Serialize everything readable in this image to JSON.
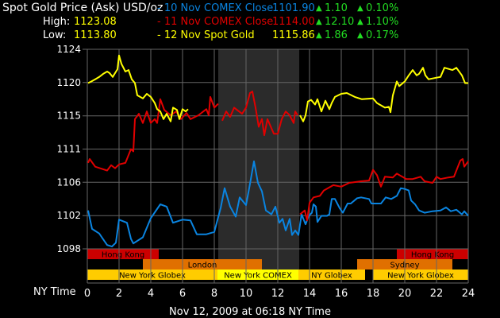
{
  "header": {
    "title": "Spot Gold Price (Ask) USD/oz",
    "high_label": "High:",
    "high_value": "1123.08",
    "low_label": "Low:",
    "low_value": "1113.80"
  },
  "legend": [
    {
      "label": "- 10 Nov COMEX Close",
      "price": "1101.90",
      "change": "1.10",
      "pct": "0.10%",
      "color": "#0a84e0"
    },
    {
      "label": "- 11 Nov COMEX Close",
      "price": "1114.00",
      "change": "12.10",
      "pct": "1.10%",
      "color": "#e00000"
    },
    {
      "label": "- 12 Nov Spot Gold",
      "price": "1115.86",
      "change": "1.86",
      "pct": "0.17%",
      "color": "#ffff00"
    }
  ],
  "colors": {
    "up": "#22dd22",
    "grid": "#666666",
    "shade": "#2b2b2b",
    "text": "#ffffff"
  },
  "icons": {
    "change_indicator": "triangle-up-icon"
  },
  "footer": {
    "timestamp": "Nov 12, 2009 at 06:18 NY Time"
  },
  "chart_data": {
    "type": "line",
    "xlabel": "NY Time",
    "xlim": [
      0,
      24
    ],
    "ylim": [
      1098,
      1124
    ],
    "x_ticks": [
      "0",
      "2",
      "4",
      "6",
      "8",
      "10",
      "12",
      "14",
      "16",
      "18",
      "20",
      "22",
      "24"
    ],
    "y_ticks": [
      "1098",
      "1102",
      "1106",
      "1111",
      "1115",
      "1120",
      "1124"
    ],
    "y_tick_values": [
      1098,
      1102.33,
      1106.67,
      1111,
      1115.33,
      1119.67,
      1124
    ],
    "grid": true,
    "shaded_period": [
      8.25,
      13.35
    ],
    "sessions": [
      {
        "name": "Hong Kong",
        "row": 0,
        "start": 0,
        "end": 4.5,
        "color": "#cc0000"
      },
      {
        "name": "Hong Kong",
        "row": 0,
        "start": 19.5,
        "end": 24,
        "color": "#cc0000"
      },
      {
        "name": "London",
        "row": 1,
        "start": 3.5,
        "end": 11,
        "color": "#e07000"
      },
      {
        "name": "Sydney",
        "row": 1,
        "start": 17,
        "end": 23,
        "color": "#e07000"
      },
      {
        "name": "New York Globex",
        "row": 2,
        "start": 0,
        "end": 8.2,
        "color": "#ffcc00"
      },
      {
        "name": "New York COMEX",
        "row": 2,
        "start": 8.2,
        "end": 13.3,
        "color": "#ffff00"
      },
      {
        "name": "NY Globex",
        "row": 2,
        "start": 13.3,
        "end": 17.5,
        "color": "#ffcc00"
      },
      {
        "name": "New York Globex",
        "row": 2,
        "start": 18,
        "end": 24,
        "color": "#ffcc00"
      }
    ],
    "series": [
      {
        "name": "10 Nov COMEX Close",
        "color": "#0a84e0",
        "segments": [
          [
            [
              0.05,
              1103.0
            ],
            [
              0.3,
              1100.6
            ],
            [
              0.75,
              1100.0
            ],
            [
              1.25,
              1098.5
            ],
            [
              1.55,
              1098.3
            ],
            [
              1.8,
              1098.8
            ],
            [
              2.0,
              1101.8
            ],
            [
              2.5,
              1101.4
            ],
            [
              2.75,
              1099.3
            ],
            [
              2.9,
              1098.7
            ],
            [
              3.5,
              1099.5
            ],
            [
              4.0,
              1102.0
            ],
            [
              4.6,
              1103.8
            ],
            [
              5.0,
              1103.5
            ],
            [
              5.4,
              1101.4
            ],
            [
              6.0,
              1101.8
            ],
            [
              6.5,
              1101.7
            ],
            [
              6.9,
              1099.9
            ],
            [
              7.5,
              1099.9
            ],
            [
              8.0,
              1100.2
            ],
            [
              8.4,
              1103.3
            ],
            [
              8.65,
              1105.9
            ],
            [
              9.0,
              1103.5
            ],
            [
              9.35,
              1102.2
            ],
            [
              9.6,
              1104.7
            ],
            [
              10.0,
              1103.7
            ],
            [
              10.2,
              1105.9
            ],
            [
              10.5,
              1109.4
            ],
            [
              10.75,
              1106.6
            ],
            [
              11.0,
              1105.5
            ],
            [
              11.25,
              1103.0
            ],
            [
              11.6,
              1102.5
            ],
            [
              11.85,
              1103.5
            ],
            [
              12.1,
              1101.4
            ],
            [
              12.3,
              1101.9
            ],
            [
              12.5,
              1100.4
            ],
            [
              12.75,
              1101.9
            ],
            [
              12.9,
              1099.8
            ],
            [
              13.1,
              1100.4
            ],
            [
              13.3,
              1099.8
            ],
            [
              13.5,
              1102.5
            ],
            [
              13.75,
              1101.2
            ],
            [
              13.95,
              1102.3
            ],
            [
              14.15,
              1102.7
            ],
            [
              14.25,
              1103.8
            ],
            [
              14.4,
              1103.5
            ],
            [
              14.5,
              1101.5
            ],
            [
              14.75,
              1102.3
            ],
            [
              15.1,
              1102.3
            ],
            [
              15.25,
              1102.5
            ],
            [
              15.4,
              1104.5
            ],
            [
              15.6,
              1104.5
            ],
            [
              15.9,
              1103.3
            ],
            [
              16.1,
              1102.7
            ],
            [
              16.4,
              1103.9
            ],
            [
              16.6,
              1103.9
            ],
            [
              17.0,
              1104.6
            ],
            [
              17.25,
              1104.7
            ],
            [
              17.75,
              1104.5
            ],
            [
              17.9,
              1103.9
            ],
            [
              18.5,
              1103.9
            ],
            [
              18.8,
              1104.7
            ],
            [
              19.15,
              1104.5
            ],
            [
              19.5,
              1104.9
            ],
            [
              19.75,
              1105.9
            ],
            [
              20.0,
              1105.8
            ],
            [
              20.25,
              1105.6
            ],
            [
              20.4,
              1104.3
            ],
            [
              20.65,
              1103.8
            ],
            [
              20.9,
              1103.0
            ],
            [
              21.25,
              1102.7
            ],
            [
              21.75,
              1102.9
            ],
            [
              22.25,
              1103.0
            ],
            [
              22.6,
              1103.4
            ],
            [
              22.9,
              1102.9
            ],
            [
              23.25,
              1103.1
            ],
            [
              23.6,
              1102.5
            ],
            [
              23.75,
              1102.9
            ],
            [
              24.0,
              1102.3
            ]
          ]
        ]
      },
      {
        "name": "11 Nov COMEX Close",
        "color": "#e00000",
        "segments": [
          [
            [
              0.05,
              1109.2
            ],
            [
              0.15,
              1109.7
            ],
            [
              0.5,
              1108.7
            ],
            [
              1.25,
              1108.2
            ],
            [
              1.5,
              1108.9
            ],
            [
              1.75,
              1108.5
            ],
            [
              2.0,
              1109.0
            ],
            [
              2.4,
              1109.2
            ],
            [
              2.5,
              1109.7
            ],
            [
              2.75,
              1111.0
            ],
            [
              2.9,
              1110.7
            ],
            [
              3.0,
              1114.9
            ],
            [
              3.25,
              1115.6
            ],
            [
              3.5,
              1114.4
            ],
            [
              3.75,
              1115.9
            ],
            [
              4.0,
              1114.4
            ],
            [
              4.25,
              1114.9
            ],
            [
              4.4,
              1114.4
            ],
            [
              4.6,
              1117.5
            ],
            [
              4.85,
              1116.1
            ],
            [
              5.25,
              1115.4
            ],
            [
              5.6,
              1115.9
            ],
            [
              5.9,
              1114.9
            ],
            [
              6.25,
              1115.7
            ],
            [
              6.5,
              1114.9
            ],
            [
              7.0,
              1115.4
            ],
            [
              7.5,
              1116.2
            ],
            [
              7.65,
              1115.4
            ],
            [
              7.75,
              1117.8
            ],
            [
              8.0,
              1116.4
            ],
            [
              8.25,
              1116.9
            ]
          ],
          [
            [
              8.5,
              1114.7
            ],
            [
              8.75,
              1115.9
            ],
            [
              9.0,
              1115.2
            ],
            [
              9.25,
              1116.4
            ],
            [
              9.75,
              1115.6
            ],
            [
              10.0,
              1116.4
            ],
            [
              10.25,
              1118.3
            ],
            [
              10.4,
              1118.5
            ],
            [
              10.6,
              1116.4
            ],
            [
              10.8,
              1113.9
            ],
            [
              11.0,
              1114.9
            ],
            [
              11.15,
              1112.8
            ],
            [
              11.35,
              1114.9
            ],
            [
              11.75,
              1113.0
            ],
            [
              12.0,
              1113.0
            ],
            [
              12.25,
              1114.9
            ],
            [
              12.5,
              1115.9
            ],
            [
              12.75,
              1115.4
            ],
            [
              13.0,
              1114.4
            ],
            [
              13.1,
              1115.9
            ],
            [
              13.25,
              1115.4
            ]
          ],
          [
            [
              13.4,
              1102.5
            ],
            [
              13.7,
              1103.0
            ],
            [
              13.85,
              1101.7
            ],
            [
              14.0,
              1104.0
            ],
            [
              14.25,
              1104.7
            ],
            [
              14.65,
              1104.9
            ],
            [
              14.9,
              1105.6
            ],
            [
              15.5,
              1106.3
            ],
            [
              16.0,
              1106.1
            ],
            [
              16.5,
              1106.6
            ],
            [
              17.25,
              1106.8
            ],
            [
              17.75,
              1106.9
            ],
            [
              18.0,
              1108.3
            ],
            [
              18.25,
              1107.6
            ],
            [
              18.5,
              1106.1
            ],
            [
              18.75,
              1107.4
            ],
            [
              19.25,
              1107.3
            ],
            [
              19.5,
              1107.8
            ],
            [
              20.1,
              1107.1
            ],
            [
              20.5,
              1107.1
            ],
            [
              21.0,
              1107.4
            ],
            [
              21.25,
              1106.8
            ],
            [
              21.75,
              1106.6
            ],
            [
              22.0,
              1107.4
            ],
            [
              22.25,
              1107.1
            ],
            [
              22.75,
              1107.3
            ],
            [
              23.1,
              1107.4
            ],
            [
              23.5,
              1109.5
            ],
            [
              23.65,
              1109.7
            ],
            [
              23.75,
              1108.7
            ],
            [
              24.0,
              1109.4
            ]
          ]
        ]
      },
      {
        "name": "12 Nov Spot Gold",
        "color": "#ffff00",
        "segments": [
          [
            [
              0.05,
              1119.6
            ],
            [
              0.25,
              1119.8
            ],
            [
              0.5,
              1120.1
            ],
            [
              0.75,
              1120.4
            ],
            [
              1.0,
              1120.8
            ],
            [
              1.25,
              1121.1
            ],
            [
              1.4,
              1120.9
            ],
            [
              1.6,
              1120.4
            ],
            [
              1.75,
              1120.9
            ],
            [
              1.9,
              1121.4
            ],
            [
              2.0,
              1123.2
            ],
            [
              2.15,
              1122.1
            ],
            [
              2.4,
              1121.1
            ],
            [
              2.6,
              1121.3
            ],
            [
              2.8,
              1120.1
            ],
            [
              3.0,
              1119.6
            ],
            [
              3.15,
              1118.0
            ],
            [
              3.5,
              1117.6
            ],
            [
              3.75,
              1118.2
            ],
            [
              4.0,
              1117.8
            ],
            [
              4.25,
              1117.0
            ],
            [
              4.4,
              1116.2
            ],
            [
              4.6,
              1115.9
            ],
            [
              4.8,
              1114.9
            ],
            [
              5.0,
              1115.6
            ],
            [
              5.25,
              1114.6
            ],
            [
              5.4,
              1116.4
            ],
            [
              5.65,
              1116.1
            ],
            [
              5.8,
              1114.9
            ],
            [
              6.0,
              1116.2
            ],
            [
              6.2,
              1115.9
            ],
            [
              6.35,
              1116.2
            ]
          ],
          [
            [
              13.4,
              1115.4
            ],
            [
              13.6,
              1114.6
            ],
            [
              13.75,
              1115.4
            ],
            [
              13.9,
              1117.2
            ],
            [
              14.1,
              1117.4
            ],
            [
              14.35,
              1116.8
            ],
            [
              14.5,
              1117.5
            ],
            [
              14.75,
              1115.9
            ],
            [
              15.0,
              1117.3
            ],
            [
              15.25,
              1116.2
            ],
            [
              15.4,
              1117.0
            ],
            [
              15.6,
              1117.8
            ],
            [
              16.0,
              1118.2
            ],
            [
              16.35,
              1118.3
            ],
            [
              16.85,
              1117.8
            ],
            [
              17.3,
              1117.5
            ],
            [
              18.0,
              1117.6
            ],
            [
              18.25,
              1117.0
            ],
            [
              18.75,
              1116.4
            ],
            [
              19.0,
              1116.5
            ],
            [
              19.1,
              1115.8
            ],
            [
              19.25,
              1118.0
            ],
            [
              19.5,
              1119.8
            ],
            [
              19.65,
              1119.2
            ],
            [
              20.0,
              1119.8
            ],
            [
              20.25,
              1120.6
            ],
            [
              20.5,
              1121.3
            ],
            [
              20.75,
              1120.6
            ],
            [
              20.9,
              1120.8
            ],
            [
              21.15,
              1121.6
            ],
            [
              21.3,
              1120.6
            ],
            [
              21.5,
              1120.1
            ],
            [
              22.0,
              1120.3
            ],
            [
              22.25,
              1120.4
            ],
            [
              22.5,
              1121.6
            ],
            [
              23.0,
              1121.3
            ],
            [
              23.25,
              1121.6
            ],
            [
              23.6,
              1120.6
            ],
            [
              23.8,
              1119.6
            ],
            [
              24.0,
              1119.6
            ]
          ]
        ]
      }
    ]
  }
}
